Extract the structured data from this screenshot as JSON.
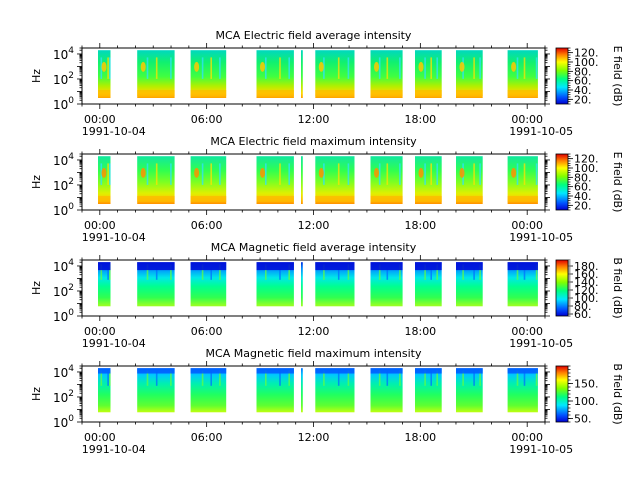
{
  "chart_data": [
    {
      "type": "heatmap",
      "title": "MCA  Electric field average intensity",
      "ylabel": "Hz",
      "y_scale": "log",
      "ylim": [
        1,
        30000
      ],
      "y_ticks": [
        {
          "v": 1,
          "label": "10",
          "exp": "0"
        },
        {
          "v": 100,
          "label": "10",
          "exp": "2"
        },
        {
          "v": 10000,
          "label": "10",
          "exp": "4"
        }
      ],
      "x_ticks": [
        "00:00",
        "06:00",
        "12:00",
        "18:00",
        "00:00"
      ],
      "x_dates": [
        "1991-10-04",
        "1991-10-05"
      ],
      "colorbar": {
        "label": "E field (dB)",
        "ticks": [
          "20.",
          "40.",
          "60.",
          "80.",
          "100.",
          "120."
        ],
        "range": [
          10,
          130
        ]
      },
      "colormap": "rainbow",
      "kind": "electric"
    },
    {
      "type": "heatmap",
      "title": "MCA  Electric field maximum intensity",
      "ylabel": "Hz",
      "y_scale": "log",
      "ylim": [
        1,
        30000
      ],
      "y_ticks": [
        {
          "v": 1,
          "label": "10",
          "exp": "0"
        },
        {
          "v": 100,
          "label": "10",
          "exp": "2"
        },
        {
          "v": 10000,
          "label": "10",
          "exp": "4"
        }
      ],
      "x_ticks": [
        "00:00",
        "06:00",
        "12:00",
        "18:00",
        "00:00"
      ],
      "x_dates": [
        "1991-10-04",
        "1991-10-05"
      ],
      "colorbar": {
        "label": "E field (dB)",
        "ticks": [
          "20.",
          "40.",
          "60.",
          "80.",
          "100.",
          "120."
        ],
        "range": [
          10,
          130
        ]
      },
      "colormap": "rainbow",
      "kind": "electric"
    },
    {
      "type": "heatmap",
      "title": "MCA  Magnetic field average intensity",
      "ylabel": "Hz",
      "y_scale": "log",
      "ylim": [
        1,
        30000
      ],
      "y_ticks": [
        {
          "v": 1,
          "label": "10",
          "exp": "0"
        },
        {
          "v": 100,
          "label": "10",
          "exp": "2"
        },
        {
          "v": 10000,
          "label": "10",
          "exp": "4"
        }
      ],
      "x_ticks": [
        "00:00",
        "06:00",
        "12:00",
        "18:00",
        "00:00"
      ],
      "x_dates": [
        "1991-10-04",
        "1991-10-05"
      ],
      "colorbar": {
        "label": "B field (dB)",
        "ticks": [
          "60.",
          "80.",
          "100.",
          "120.",
          "140.",
          "160.",
          "180."
        ],
        "range": [
          55,
          195
        ]
      },
      "colormap": "rainbow",
      "kind": "magnetic"
    },
    {
      "type": "heatmap",
      "title": "MCA  Magnetic field maximum intensity",
      "ylabel": "Hz",
      "y_scale": "log",
      "ylim": [
        1,
        30000
      ],
      "y_ticks": [
        {
          "v": 1,
          "label": "10",
          "exp": "0"
        },
        {
          "v": 100,
          "label": "10",
          "exp": "2"
        },
        {
          "v": 10000,
          "label": "10",
          "exp": "4"
        }
      ],
      "x_ticks": [
        "00:00",
        "06:00",
        "12:00",
        "18:00",
        "00:00"
      ],
      "x_dates": [
        "1991-10-04",
        "1991-10-05"
      ],
      "colorbar": {
        "label": "B field (dB)",
        "ticks": [
          "50.",
          "100.",
          "150."
        ],
        "range": [
          40,
          200
        ]
      },
      "colormap": "rainbow",
      "kind": "magnetic"
    }
  ],
  "x_range_hours": [
    -1,
    25
  ],
  "data_segments_hours": [
    [
      -0.1,
      0.6
    ],
    [
      2.1,
      4.2
    ],
    [
      5.1,
      7.1
    ],
    [
      8.8,
      10.9
    ],
    [
      11.3,
      11.4
    ],
    [
      12.1,
      14.3
    ],
    [
      15.2,
      17.0
    ],
    [
      17.7,
      19.2
    ],
    [
      20.0,
      21.5
    ],
    [
      22.9,
      24.6
    ]
  ]
}
